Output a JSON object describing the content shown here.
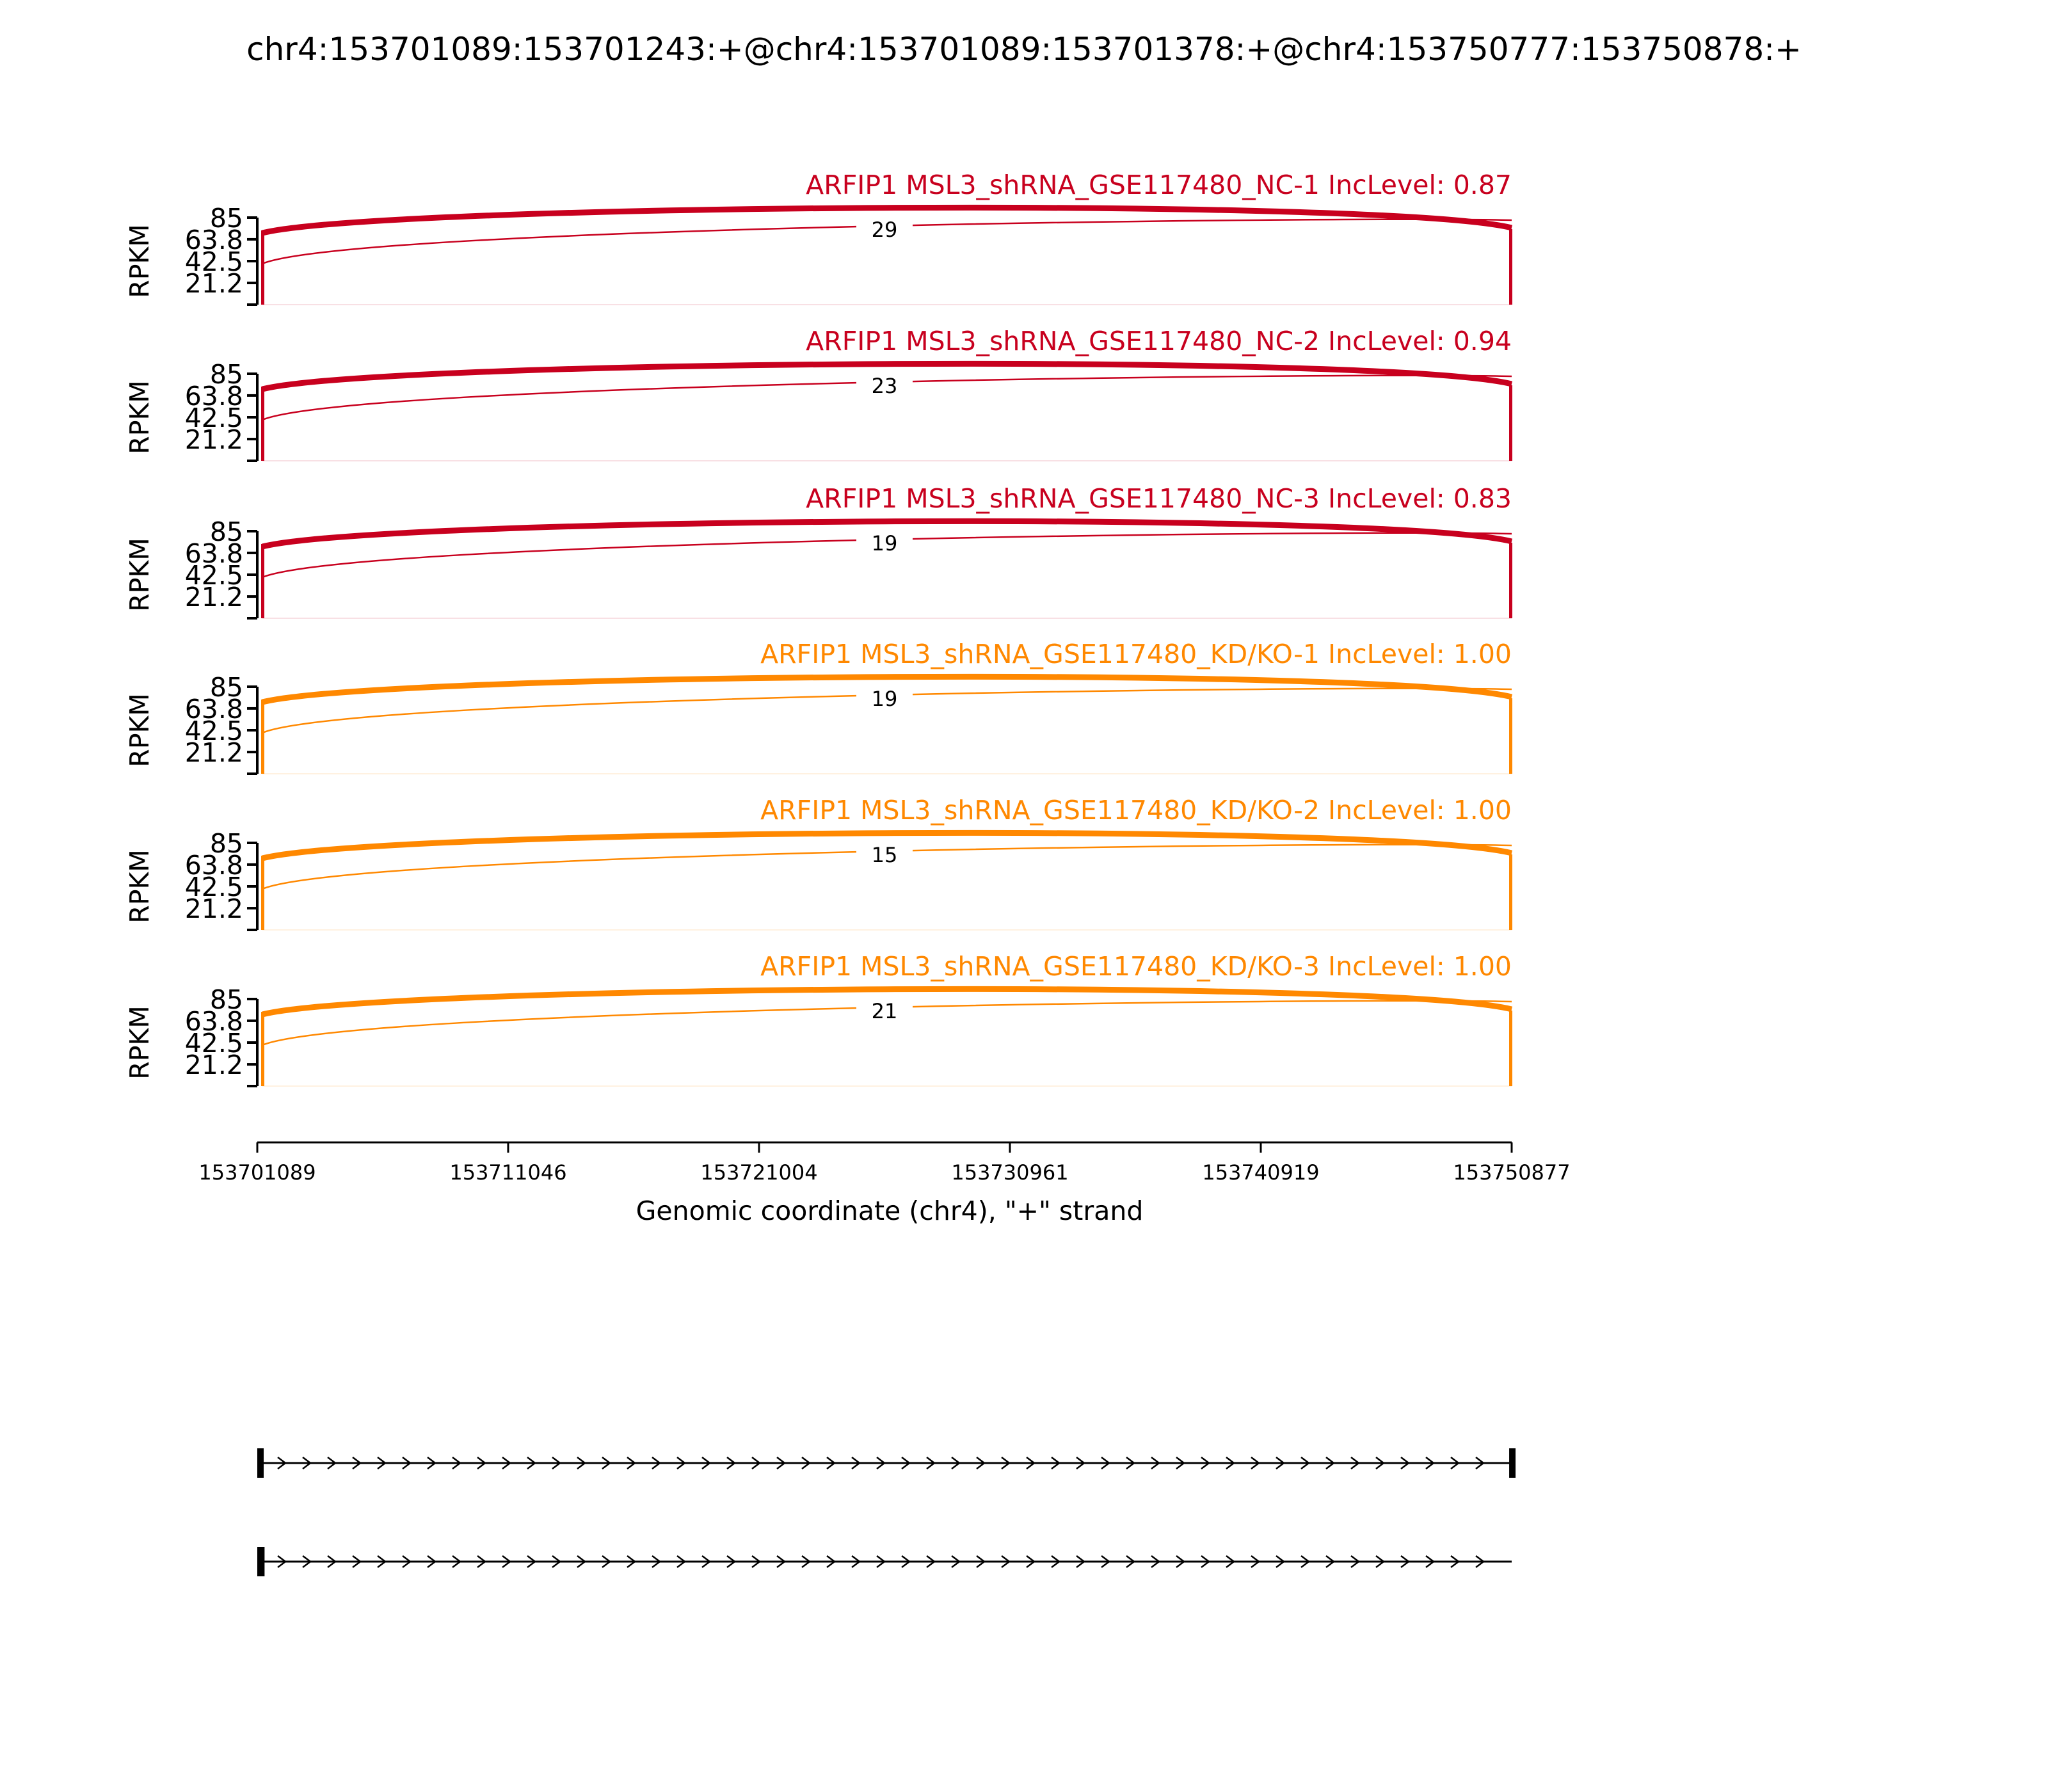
{
  "figure": {
    "title": "chr4:153701089:153701243:+@chr4:153701089:153701378:+@chr4:153750777:153750878:+",
    "ylabel": "RPKM",
    "xlabel": "Genomic coordinate (chr4), \"+\" strand"
  },
  "chart_data": {
    "type": "sashimi",
    "title": "chr4:153701089:153701243:+@chr4:153701089:153701378:+@chr4:153750777:153750878:+",
    "xlabel": "Genomic coordinate (chr4), \"+\" strand",
    "ylabel": "RPKM",
    "xlim": [
      153701089,
      153750877
    ],
    "x_ticks": [
      "153701089",
      "153711046",
      "153721004",
      "153730961",
      "153740919",
      "153750877"
    ],
    "ylim": [
      0,
      85
    ],
    "y_ticks": [
      "85",
      "63.8",
      "42.5",
      "21.2"
    ],
    "grid": false,
    "tracks": [
      {
        "label": "ARFIP1 MSL3_shRNA_GSE117480_NC-1 IncLevel: 0.87",
        "color": "#c8001e",
        "junction_count": "29"
      },
      {
        "label": "ARFIP1 MSL3_shRNA_GSE117480_NC-2 IncLevel: 0.94",
        "color": "#c8001e",
        "junction_count": "23"
      },
      {
        "label": "ARFIP1 MSL3_shRNA_GSE117480_NC-3 IncLevel: 0.83",
        "color": "#c8001e",
        "junction_count": "19"
      },
      {
        "label": "ARFIP1 MSL3_shRNA_GSE117480_KD/KO-1 IncLevel: 1.00",
        "color": "#ff8800",
        "junction_count": "19"
      },
      {
        "label": "ARFIP1 MSL3_shRNA_GSE117480_KD/KO-2 IncLevel: 1.00",
        "color": "#ff8800",
        "junction_count": "15"
      },
      {
        "label": "ARFIP1 MSL3_shRNA_GSE117480_KD/KO-3 IncLevel: 1.00",
        "color": "#ff8800",
        "junction_count": "21"
      }
    ],
    "isoforms": [
      {
        "exons": [
          [
            153701089,
            153701243
          ],
          [
            153750777,
            153750878
          ]
        ],
        "strand": "+"
      },
      {
        "exons": [
          [
            153701089,
            153701378
          ]
        ],
        "strand": "+"
      }
    ]
  }
}
